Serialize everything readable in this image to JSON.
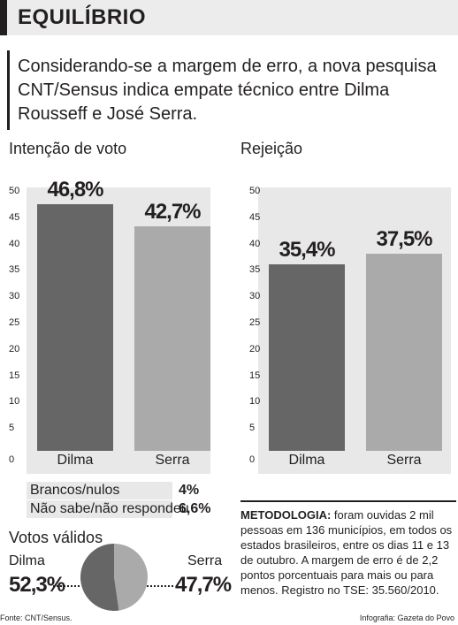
{
  "header": {
    "title": "EQUILÍBRIO"
  },
  "lead": "Considerando-se a margem de erro, a nova pesquisa CNT/Sensus indica empate técnico entre Dilma Rousseff e José Serra.",
  "chart_data": [
    {
      "type": "bar",
      "title": "Intenção de voto",
      "categories": [
        "Dilma",
        "Serra"
      ],
      "values": [
        46.8,
        42.7
      ],
      "value_labels": [
        "46,8%",
        "42,7%"
      ],
      "colors": [
        "#666666",
        "#aaaaaa"
      ],
      "ylim": [
        0,
        50
      ],
      "yticks": [
        0,
        5,
        10,
        15,
        20,
        25,
        30,
        35,
        40,
        45,
        50
      ]
    },
    {
      "type": "bar",
      "title": "Rejeição",
      "categories": [
        "Dilma",
        "Serra"
      ],
      "values": [
        35.4,
        37.5
      ],
      "value_labels": [
        "35,4%",
        "37,5%"
      ],
      "colors": [
        "#666666",
        "#aaaaaa"
      ],
      "ylim": [
        0,
        50
      ],
      "yticks": [
        0,
        5,
        10,
        15,
        20,
        25,
        30,
        35,
        40,
        45,
        50
      ]
    },
    {
      "type": "pie",
      "title": "Votos válidos",
      "categories": [
        "Dilma",
        "Serra"
      ],
      "values": [
        52.3,
        47.7
      ],
      "value_labels": [
        "52,3%",
        "47,7%"
      ],
      "colors": [
        "#666666",
        "#aaaaaa"
      ]
    }
  ],
  "stats": [
    {
      "label": "Brancos/nulos",
      "value": "4%"
    },
    {
      "label": "Não sabe/não respondeu",
      "value": "6,6%"
    }
  ],
  "methodology": {
    "heading": "METODOLOGIA:",
    "text": " foram ouvidas 2 mil pessoas em 136 municípios, em todos os estados brasileiros, entre os dias 11 e 13 de outubro. A margem de erro é de 2,2 pontos porcentuais para mais ou para menos. Registro no TSE: 35.560/2010."
  },
  "footer": {
    "source": "Fonte: CNT/Sensus.",
    "credit": "Infografia: Gazeta do Povo"
  }
}
